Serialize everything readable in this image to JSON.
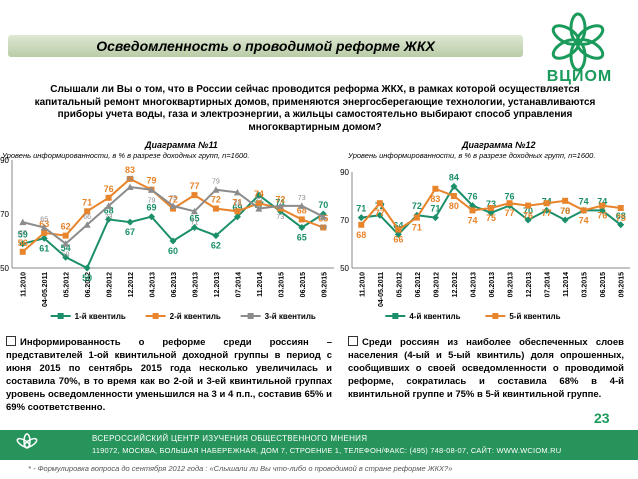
{
  "title": "Осведомленность о проводимой реформе ЖКХ",
  "logo_text": "ВЦИОМ",
  "question": "Слышали ли Вы о том, что в России сейчас проводится реформа ЖКХ, в рамках которой осуществляется капитальный ремонт многоквартирных домов, применяются энергосберегающие технологии, устанавливаются приборы учета воды, газа и электроэнергии, а жильцы самостоятельно выбирают способ управления многоквартирным домом?",
  "bullets": {
    "left": "Информированность о реформе среди россиян – представителей 1-ой квинтильной доходной группы в период с июня 2015 по сентябрь 2015 года несколько увеличилась и составила 70%, в то время как во 2-ой и 3-ей квинтильной группах уровень осведомленности уменьшился на 3 и 4 п.п., составив 65% и 69% соответственно.",
    "right": "Среди россиян из наиболее обеспеченных слоев населения (4-ый и 5-ый квинтиль) доля опрошенных, сообщивших о своей осведомленности о проводимой реформе, сократилась и составила 68% в 4-й квинтильной группе и 75% в 5-й квинтильной группе."
  },
  "page_number": "23",
  "footer": {
    "line1": "ВСЕРОССИЙСКИЙ ЦЕНТР ИЗУЧЕНИЯ ОБЩЕСТВЕННОГО МНЕНИЯ",
    "line2": "119072, МОСКВА, БОЛЬШАЯ НАБЕРЕЖНАЯ, ДОМ 7, СТРОЕНИЕ 1, ТЕЛЕФОН/ФАКС: (495) 748-08-07, САЙТ: WWW.WCIOM.RU"
  },
  "footnote": "* - Формулировка вопроса до сентября 2012 года : «Слышали ли Вы что-либо о проводимой в стране реформе ЖКХ?»",
  "colors": {
    "q1": "#1a8f6a",
    "q2": "#e8842b",
    "q3": "#8c8c8c",
    "q4": "#1a8f6a",
    "q5": "#e8842b",
    "accent": "#1a9a5b"
  },
  "chart_data": [
    {
      "type": "line",
      "title": "Диаграмма №11",
      "subtitle": "Уровень информированности, в % в разрезе доходных групп, n=1600.",
      "categories": [
        "11.2010",
        "04-05.2011",
        "05.2012",
        "06.2012",
        "09.2012",
        "12.2012",
        "04.2013",
        "06.2013",
        "09.2013",
        "12.2013",
        "07.2014",
        "11.2014",
        "03.2015",
        "06.2015",
        "09.2015"
      ],
      "ylim": [
        50,
        90
      ],
      "yticks": [
        50,
        70,
        90
      ],
      "series": [
        {
          "name": "1-й квентиль",
          "color_key": "q1",
          "values": [
            59,
            61,
            54,
            50,
            68,
            67,
            69,
            60,
            65,
            62,
            69,
            77,
            71,
            65,
            70
          ]
        },
        {
          "name": "2-й квентиль",
          "color_key": "q2",
          "values": [
            56,
            63,
            62,
            71,
            76,
            83,
            79,
            72,
            77,
            72,
            71,
            74,
            72,
            68,
            65
          ]
        },
        {
          "name": "3-й квентиль",
          "color_key": "q3",
          "values": [
            67,
            65,
            59,
            66,
            73,
            80,
            79,
            73,
            71,
            79,
            78,
            72,
            73,
            73,
            69
          ]
        }
      ]
    },
    {
      "type": "line",
      "title": "Диаграмма №12",
      "subtitle": "Уровень информированности, в % в разрезе доходных групп, n=1600.",
      "categories": [
        "11.2010",
        "04-05.2011",
        "05.2012",
        "06.2012",
        "09.2012",
        "12.2012",
        "04.2013",
        "06.2013",
        "09.2013",
        "12.2013",
        "07.2014",
        "11.2014",
        "03.2015",
        "06.2015",
        "09.2015"
      ],
      "ylim": [
        50,
        90
      ],
      "yticks": [
        50,
        70,
        90
      ],
      "series": [
        {
          "name": "4-й квентиль",
          "color_key": "q4",
          "values": [
            71,
            72,
            64,
            72,
            71,
            84,
            76,
            73,
            76,
            70,
            74,
            70,
            74,
            74,
            68
          ]
        },
        {
          "name": "5-й квентиль",
          "color_key": "q5",
          "values": [
            68,
            77,
            66,
            71,
            83,
            80,
            74,
            75,
            77,
            76,
            77,
            78,
            74,
            76,
            75
          ]
        }
      ]
    }
  ]
}
